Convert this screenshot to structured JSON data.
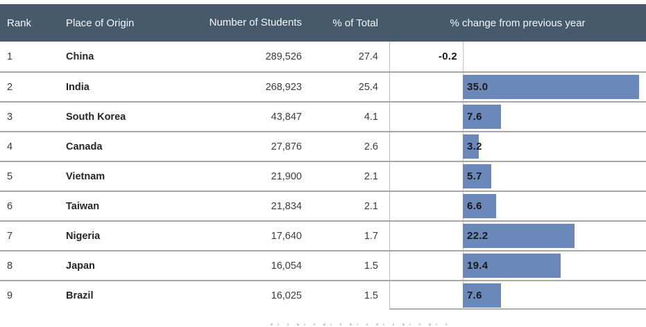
{
  "header": {
    "rank": "Rank",
    "place": "Place of Origin",
    "students": "Number of Students",
    "pct_total": "% of Total",
    "pct_change": "% change from previous year"
  },
  "colors": {
    "header_bg": "#465a6b",
    "bar": "#6a89ba",
    "row_separator": "#a6a6a6"
  },
  "chart_data": {
    "type": "table",
    "title": "",
    "columns": [
      "Rank",
      "Place of Origin",
      "Number of Students",
      "% of Total",
      "% change from previous year"
    ],
    "bar_column": {
      "type": "bar",
      "field": "pct_change",
      "orientation": "horizontal",
      "axis_range": [
        0,
        36.5
      ],
      "color": "#6a89ba",
      "legend": "none",
      "grid": "off"
    },
    "rows": [
      {
        "rank": "1",
        "place": "China",
        "students": "289,526",
        "pct_total": "27.4",
        "pct_change": -0.2,
        "pct_change_label": "-0.2"
      },
      {
        "rank": "2",
        "place": "India",
        "students": "268,923",
        "pct_total": "25.4",
        "pct_change": 35.0,
        "pct_change_label": "35.0"
      },
      {
        "rank": "3",
        "place": "South Korea",
        "students": "43,847",
        "pct_total": "4.1",
        "pct_change": 7.6,
        "pct_change_label": "7.6"
      },
      {
        "rank": "4",
        "place": "Canada",
        "students": "27,876",
        "pct_total": "2.6",
        "pct_change": 3.2,
        "pct_change_label": "3.2"
      },
      {
        "rank": "5",
        "place": "Vietnam",
        "students": "21,900",
        "pct_total": "2.1",
        "pct_change": 5.7,
        "pct_change_label": "5.7"
      },
      {
        "rank": "6",
        "place": "Taiwan",
        "students": "21,834",
        "pct_total": "2.1",
        "pct_change": 6.6,
        "pct_change_label": "6.6"
      },
      {
        "rank": "7",
        "place": "Nigeria",
        "students": "17,640",
        "pct_total": "1.7",
        "pct_change": 22.2,
        "pct_change_label": "22.2"
      },
      {
        "rank": "8",
        "place": "Japan",
        "students": "16,054",
        "pct_total": "1.5",
        "pct_change": 19.4,
        "pct_change_label": "19.4"
      },
      {
        "rank": "9",
        "place": "Brazil",
        "students": "16,025",
        "pct_total": "1.5",
        "pct_change": 7.6,
        "pct_change_label": "7.6"
      }
    ]
  }
}
